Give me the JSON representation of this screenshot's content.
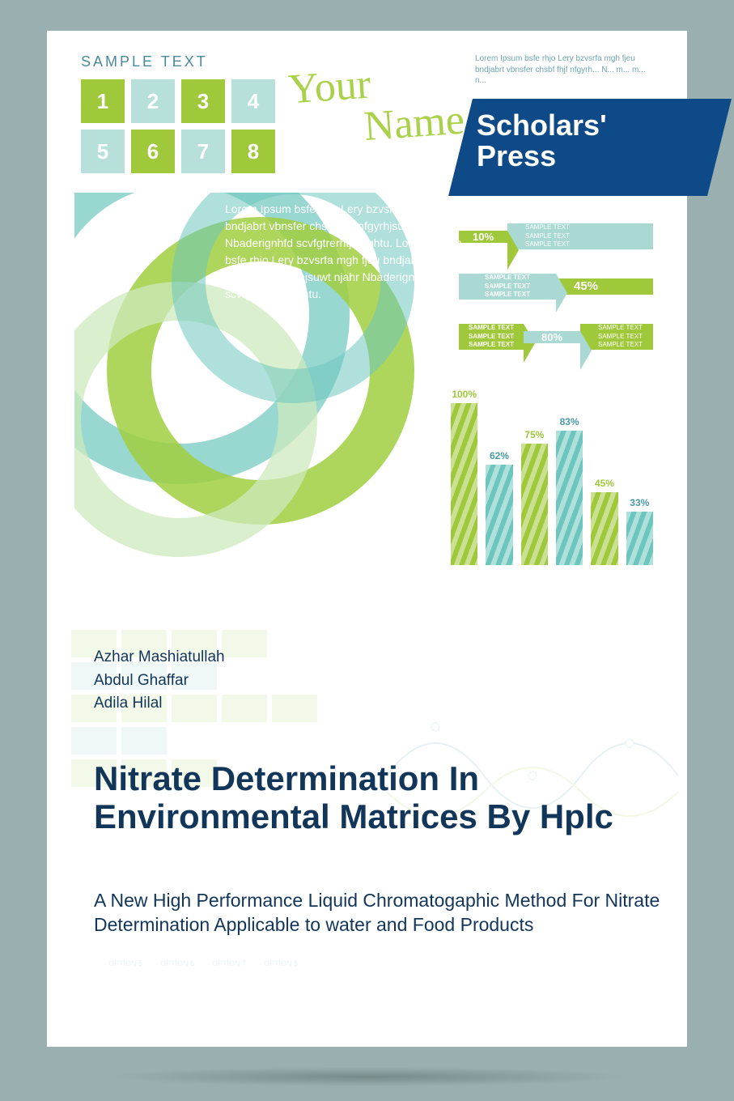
{
  "page_bg": "#9aafaf",
  "card_bg": "#ffffff",
  "sample": {
    "header": "SAMPLE TEXT",
    "header_color": "#4a8a9a",
    "boxes": [
      {
        "n": "1",
        "bg": "#9fc83b"
      },
      {
        "n": "2",
        "bg": "#b8e0da"
      },
      {
        "n": "3",
        "bg": "#9fc83b"
      },
      {
        "n": "4",
        "bg": "#b8e0da"
      },
      {
        "n": "5",
        "bg": "#b8e0da"
      },
      {
        "n": "6",
        "bg": "#9fc83b"
      },
      {
        "n": "7",
        "bg": "#b8e0da"
      },
      {
        "n": "8",
        "bg": "#9fc83b"
      }
    ]
  },
  "your_name": {
    "line1": "Your",
    "line2": "Name",
    "color": "#aad14a"
  },
  "top_lorem": "Lorem Ipsum bsfe rhjo Lery bzvsrfa mgh fjeu bndjabrt vbnsfer chsbf fhjf nfgyrh...\nN...\nm...\nm...\nn...",
  "publisher": {
    "line1": "Scholars'",
    "line2": "Press",
    "bg": "#0d4a87"
  },
  "swirl_colors": {
    "green": "#a0cf3f",
    "teal": "#6dc6bd",
    "light": "#cde9be"
  },
  "swirl_lorem": "Lorem Ipsum bsfe rhjo Lery bzvsrfa mgh fjeu bndjabrt vbnsfer chsbf fhjf nfgyrhjsuwt njahr\nNbaderignhfd scvfgtrerhtjt mghtu.\nLorem Ipsum bsfe rhjo Lery bzvsrfa mgh fjeu bndjabrt vbnsfer chsbf fhjf nfgyrhjsuwt njahr\nNbaderignhfd scvfgtrerhtjt mghtu.",
  "pct_bars": [
    {
      "pct": "10%",
      "left_bg": "#9fc83b",
      "right_bg": "#a9d9d2",
      "left_w": 60,
      "label": "SAMPLE TEXT\nSAMPLE TEXT\nSAMPLE TEXT"
    },
    {
      "pct": "45%",
      "left_bg": "#a9d9d2",
      "right_bg": "#9fc83b",
      "left_w": 120,
      "label": "SAMPLE TEXT\nSAMPLE TEXT\nSAMPLE TEXT"
    },
    {
      "pct": "80%",
      "left_bg": "#9fc83b",
      "right_bg": "#a9d9d2",
      "left_w": 100,
      "label": "SAMPLE TEXT\nSAMPLE TEXT\nSAMPLE TEXT",
      "split3": true,
      "extra_label": "SAMPLE TEXT\nSAMPLE TEXT\nSAMPLE TEXT"
    }
  ],
  "bar_chart": {
    "max_h": 200,
    "bars": [
      {
        "label": "100%",
        "value": 100,
        "color": "#9fc83b",
        "label_color": "#9fc83b"
      },
      {
        "label": "62%",
        "value": 62,
        "color": "#6dc6bd",
        "label_color": "#4a9aa6"
      },
      {
        "label": "75%",
        "value": 75,
        "color": "#9fc83b",
        "label_color": "#9fc83b"
      },
      {
        "label": "83%",
        "value": 83,
        "color": "#6dc6bd",
        "label_color": "#4a9aa6"
      },
      {
        "label": "45%",
        "value": 45,
        "color": "#9fc83b",
        "label_color": "#9fc83b"
      },
      {
        "label": "33%",
        "value": 33,
        "color": "#6dc6bd",
        "label_color": "#4a9aa6"
      }
    ]
  },
  "authors": [
    "Azhar Mashiatullah",
    "Abdul Ghaffar",
    "Adila Hilal"
  ],
  "title": "Nitrate Determination In Environmental Matrices By Hplc",
  "subtitle": "A New High Performance Liquid Chromatogaphic Method For Nitrate Determination Applicable to water and Food Products",
  "text_color": "#12365a",
  "faded": {
    "rows": [
      [
        "#bfe08a",
        "#bfe08a",
        "#bfe08a",
        "#bfe08a"
      ],
      [
        "#a9d9d2",
        "#a9d9d2",
        "#a9d9d2"
      ],
      [
        "#bfe08a",
        "#bfe08a",
        "#bfe08a",
        "#bfe08a",
        "#bfe08a"
      ],
      [
        "#a9d9d2",
        "#a9d9d2"
      ],
      [
        "#bfe08a",
        "#bfe08a",
        "#bfe08a"
      ]
    ],
    "options": [
      "OPTION 5",
      "OPTION 6",
      "OPTION 7",
      "OPTION 8"
    ]
  }
}
